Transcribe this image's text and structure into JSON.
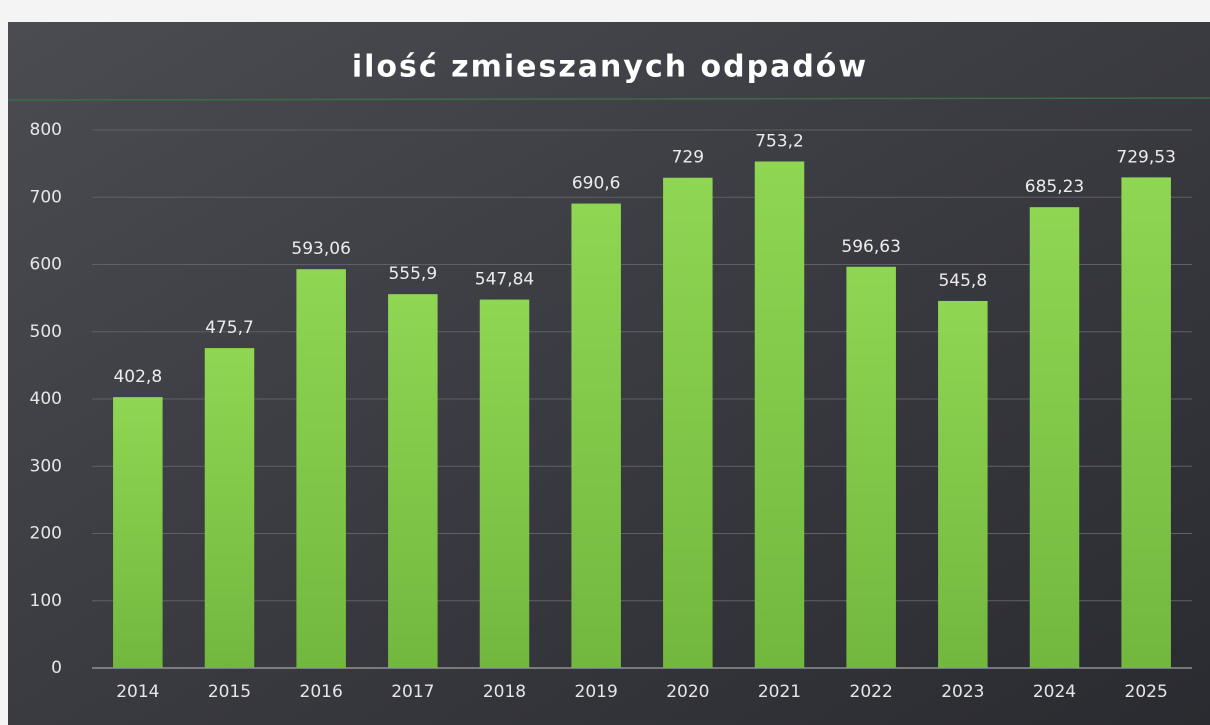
{
  "chart_data": {
    "type": "bar",
    "title": "ilość zmieszanych odpadów",
    "categories": [
      "2014",
      "2015",
      "2016",
      "2017",
      "2018",
      "2019",
      "2020",
      "2021",
      "2022",
      "2023",
      "2024",
      "2025"
    ],
    "values": [
      402.8,
      475.7,
      593.06,
      555.9,
      547.84,
      690.6,
      729,
      753.2,
      596.63,
      545.8,
      685.23,
      729.53
    ],
    "value_labels": [
      "402,8",
      "475,7",
      "593,06",
      "555,9",
      "547,84",
      "690,6",
      "729",
      "753,2",
      "596,63",
      "545,8",
      "685,23",
      "729,53"
    ],
    "color": "#7ec845",
    "ylim": [
      0,
      800
    ],
    "yticks": [
      0,
      100,
      200,
      300,
      400,
      500,
      600,
      700,
      800
    ],
    "grid": true
  }
}
